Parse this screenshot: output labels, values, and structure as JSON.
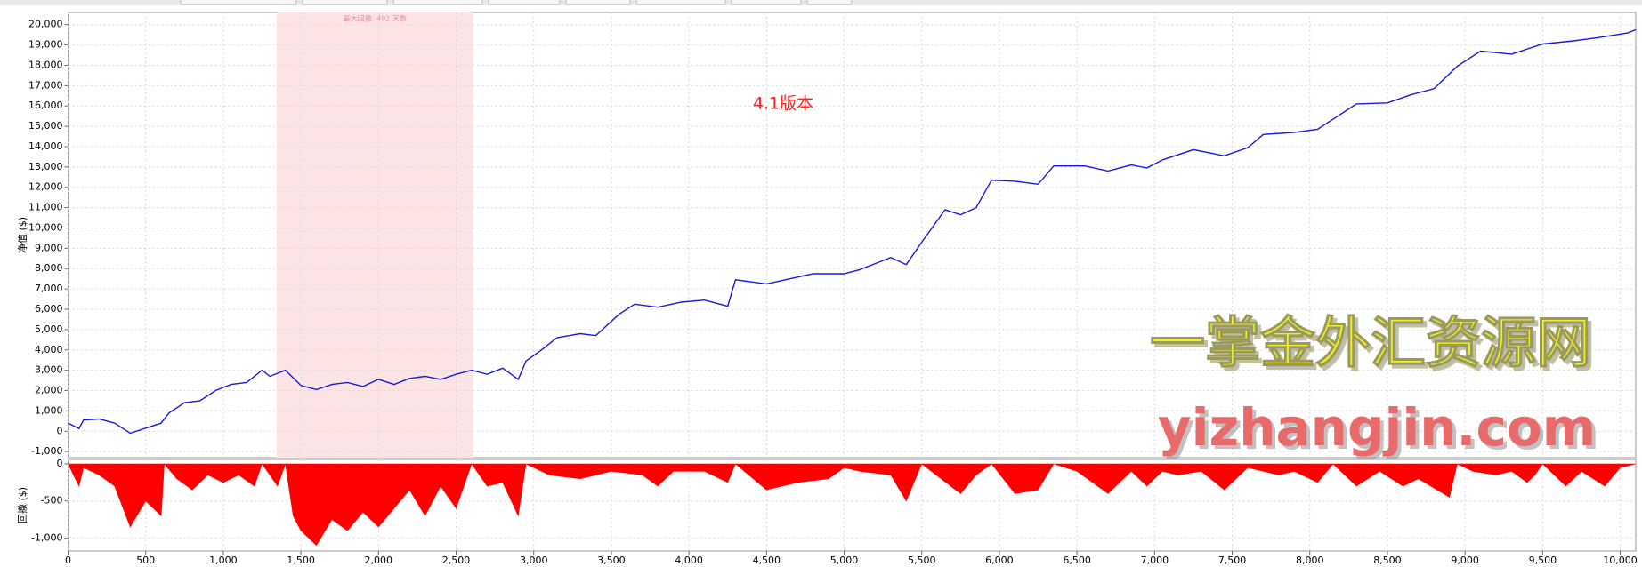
{
  "chart_data": [
    {
      "type": "line",
      "ylabel": "净值 ($)",
      "annotation": "4.1版本",
      "watermark": [
        "一掌金外汇资源网",
        "yizhangjin.com"
      ],
      "shade": {
        "label": "最大回撤: 492 天数",
        "range": [
          1343,
          2611
        ],
        "color": "#fde4e4"
      },
      "xlim": [
        0,
        10100
      ],
      "ylim": [
        -1300,
        20600
      ],
      "xticks": [
        0,
        500,
        1000,
        1500,
        2000,
        2500,
        3000,
        3500,
        4000,
        4500,
        5000,
        5500,
        6000,
        6500,
        7000,
        7500,
        8000,
        8500,
        9000,
        9500,
        10000
      ],
      "yticks": [
        {
          "value": -1000,
          "label": "-1,000"
        },
        0,
        {
          "value": 1000,
          "label": "1,000"
        },
        {
          "value": 2000,
          "label": "2,000"
        },
        {
          "value": 3000,
          "label": "3,000"
        },
        {
          "value": 4000,
          "label": "4,000"
        },
        {
          "value": 5000,
          "label": "5,000"
        },
        {
          "value": 6000,
          "label": "6,000"
        },
        {
          "value": 7000,
          "label": "7,000"
        },
        {
          "value": 8000,
          "label": "8,000"
        },
        {
          "value": 9000,
          "label": "9,000"
        },
        {
          "value": 10000,
          "label": "10,000"
        },
        {
          "value": 11000,
          "label": "11,000"
        },
        {
          "value": 12000,
          "label": "12,000"
        },
        {
          "value": 13000,
          "label": "13,000"
        },
        {
          "value": 14000,
          "label": "14,000"
        },
        {
          "value": 15000,
          "label": "15,000"
        },
        {
          "value": 16000,
          "label": "16,000"
        },
        {
          "value": 17000,
          "label": "17,000"
        },
        {
          "value": 18000,
          "label": "18,000"
        },
        {
          "value": 19000,
          "label": "19,000"
        },
        {
          "value": 20000,
          "label": "20,000"
        }
      ],
      "grid": true,
      "x": [
        0,
        70,
        100,
        200,
        300,
        400,
        500,
        600,
        650,
        750,
        850,
        950,
        1050,
        1150,
        1250,
        1300,
        1400,
        1500,
        1600,
        1700,
        1800,
        1900,
        2000,
        2100,
        2200,
        2300,
        2400,
        2500,
        2600,
        2700,
        2800,
        2900,
        2950,
        3050,
        3150,
        3300,
        3400,
        3550,
        3650,
        3800,
        3950,
        4100,
        4250,
        4300,
        4500,
        4650,
        4800,
        5000,
        5100,
        5300,
        5400,
        5500,
        5650,
        5750,
        5850,
        5950,
        6100,
        6250,
        6350,
        6550,
        6700,
        6850,
        6950,
        7050,
        7250,
        7450,
        7600,
        7700,
        7900,
        8050,
        8150,
        8300,
        8500,
        8650,
        8800,
        8950,
        9100,
        9300,
        9500,
        9700,
        9850,
        10050,
        10100
      ],
      "series": [
        {
          "color": "#1a1adb",
          "values": [
            400,
            130,
            550,
            600,
            400,
            -100,
            150,
            400,
            900,
            1400,
            1500,
            2000,
            2300,
            2400,
            3000,
            2700,
            3000,
            2250,
            2050,
            2300,
            2400,
            2200,
            2550,
            2300,
            2600,
            2700,
            2550,
            2800,
            3000,
            2800,
            3100,
            2550,
            3450,
            4000,
            4600,
            4800,
            4700,
            5750,
            6250,
            6100,
            6350,
            6450,
            6150,
            7450,
            7250,
            7500,
            7750,
            7750,
            7950,
            8550,
            8200,
            9300,
            10900,
            10650,
            11000,
            12350,
            12300,
            12150,
            13050,
            13050,
            12800,
            13100,
            12950,
            13350,
            13850,
            13550,
            13950,
            14600,
            14700,
            14850,
            15350,
            16100,
            16150,
            16550,
            16850,
            17950,
            18700,
            18550,
            19050,
            19200,
            19350,
            19600,
            19750
          ]
        }
      ]
    },
    {
      "type": "area",
      "ylabel": "回撤 ($)",
      "xlim": [
        0,
        10100
      ],
      "ylim": [
        -1175,
        60
      ],
      "xticks": [
        0,
        500,
        {
          "value": 1000,
          "label": "1,000"
        },
        {
          "value": 1500,
          "label": "1,500"
        },
        {
          "value": 2000,
          "label": "2,000"
        },
        {
          "value": 2500,
          "label": "2,500"
        },
        {
          "value": 3000,
          "label": "3,000"
        },
        {
          "value": 3500,
          "label": "3,500"
        },
        {
          "value": 4000,
          "label": "4,000"
        },
        {
          "value": 4500,
          "label": "4,500"
        },
        {
          "value": 5000,
          "label": "5,000"
        },
        {
          "value": 5500,
          "label": "5,500"
        },
        {
          "value": 6000,
          "label": "6,000"
        },
        {
          "value": 6500,
          "label": "6,500"
        },
        {
          "value": 7000,
          "label": "7,000"
        },
        {
          "value": 7500,
          "label": "7,500"
        },
        {
          "value": 8000,
          "label": "8,000"
        },
        {
          "value": 8500,
          "label": "8,500"
        },
        {
          "value": 9000,
          "label": "9,000"
        },
        {
          "value": 9500,
          "label": "9,500"
        },
        {
          "value": 10000,
          "label": "10,000"
        }
      ],
      "yticks": [
        {
          "value": -1000,
          "label": "-1,000"
        },
        -500,
        0
      ],
      "grid": true,
      "x": [
        0,
        70,
        100,
        200,
        300,
        400,
        500,
        600,
        620,
        700,
        800,
        900,
        1000,
        1100,
        1200,
        1250,
        1350,
        1400,
        1450,
        1500,
        1600,
        1700,
        1800,
        1900,
        2000,
        2100,
        2200,
        2300,
        2400,
        2500,
        2600,
        2700,
        2800,
        2900,
        2950,
        3100,
        3300,
        3500,
        3700,
        3800,
        3900,
        4100,
        4250,
        4300,
        4500,
        4700,
        4900,
        5000,
        5100,
        5300,
        5400,
        5500,
        5750,
        5850,
        5950,
        6100,
        6250,
        6350,
        6500,
        6700,
        6850,
        6950,
        7050,
        7150,
        7300,
        7450,
        7600,
        7800,
        7900,
        8050,
        8150,
        8300,
        8450,
        8600,
        8700,
        8900,
        8950,
        9050,
        9200,
        9300,
        9400,
        9450,
        9500,
        9650,
        9750,
        9900,
        10000,
        10100
      ],
      "series": [
        {
          "color": "#ff0000",
          "values": [
            0,
            -300,
            -50,
            -150,
            -300,
            -850,
            -500,
            -700,
            0,
            -200,
            -350,
            -150,
            -250,
            -150,
            -300,
            0,
            -300,
            0,
            -700,
            -900,
            -1100,
            -750,
            -900,
            -650,
            -850,
            -600,
            -350,
            -700,
            -300,
            -600,
            0,
            -300,
            -250,
            -700,
            0,
            -150,
            -200,
            -100,
            -150,
            -300,
            -100,
            -100,
            -250,
            0,
            -350,
            -250,
            -200,
            -50,
            -100,
            -150,
            -500,
            0,
            -400,
            -150,
            0,
            -400,
            -350,
            0,
            -100,
            -400,
            -100,
            -300,
            -100,
            -150,
            -100,
            -350,
            -50,
            -150,
            -100,
            -250,
            0,
            -300,
            -100,
            -300,
            -200,
            -450,
            0,
            -100,
            -150,
            -100,
            -250,
            -150,
            0,
            -300,
            -100,
            -300,
            -50,
            0
          ]
        }
      ]
    }
  ]
}
